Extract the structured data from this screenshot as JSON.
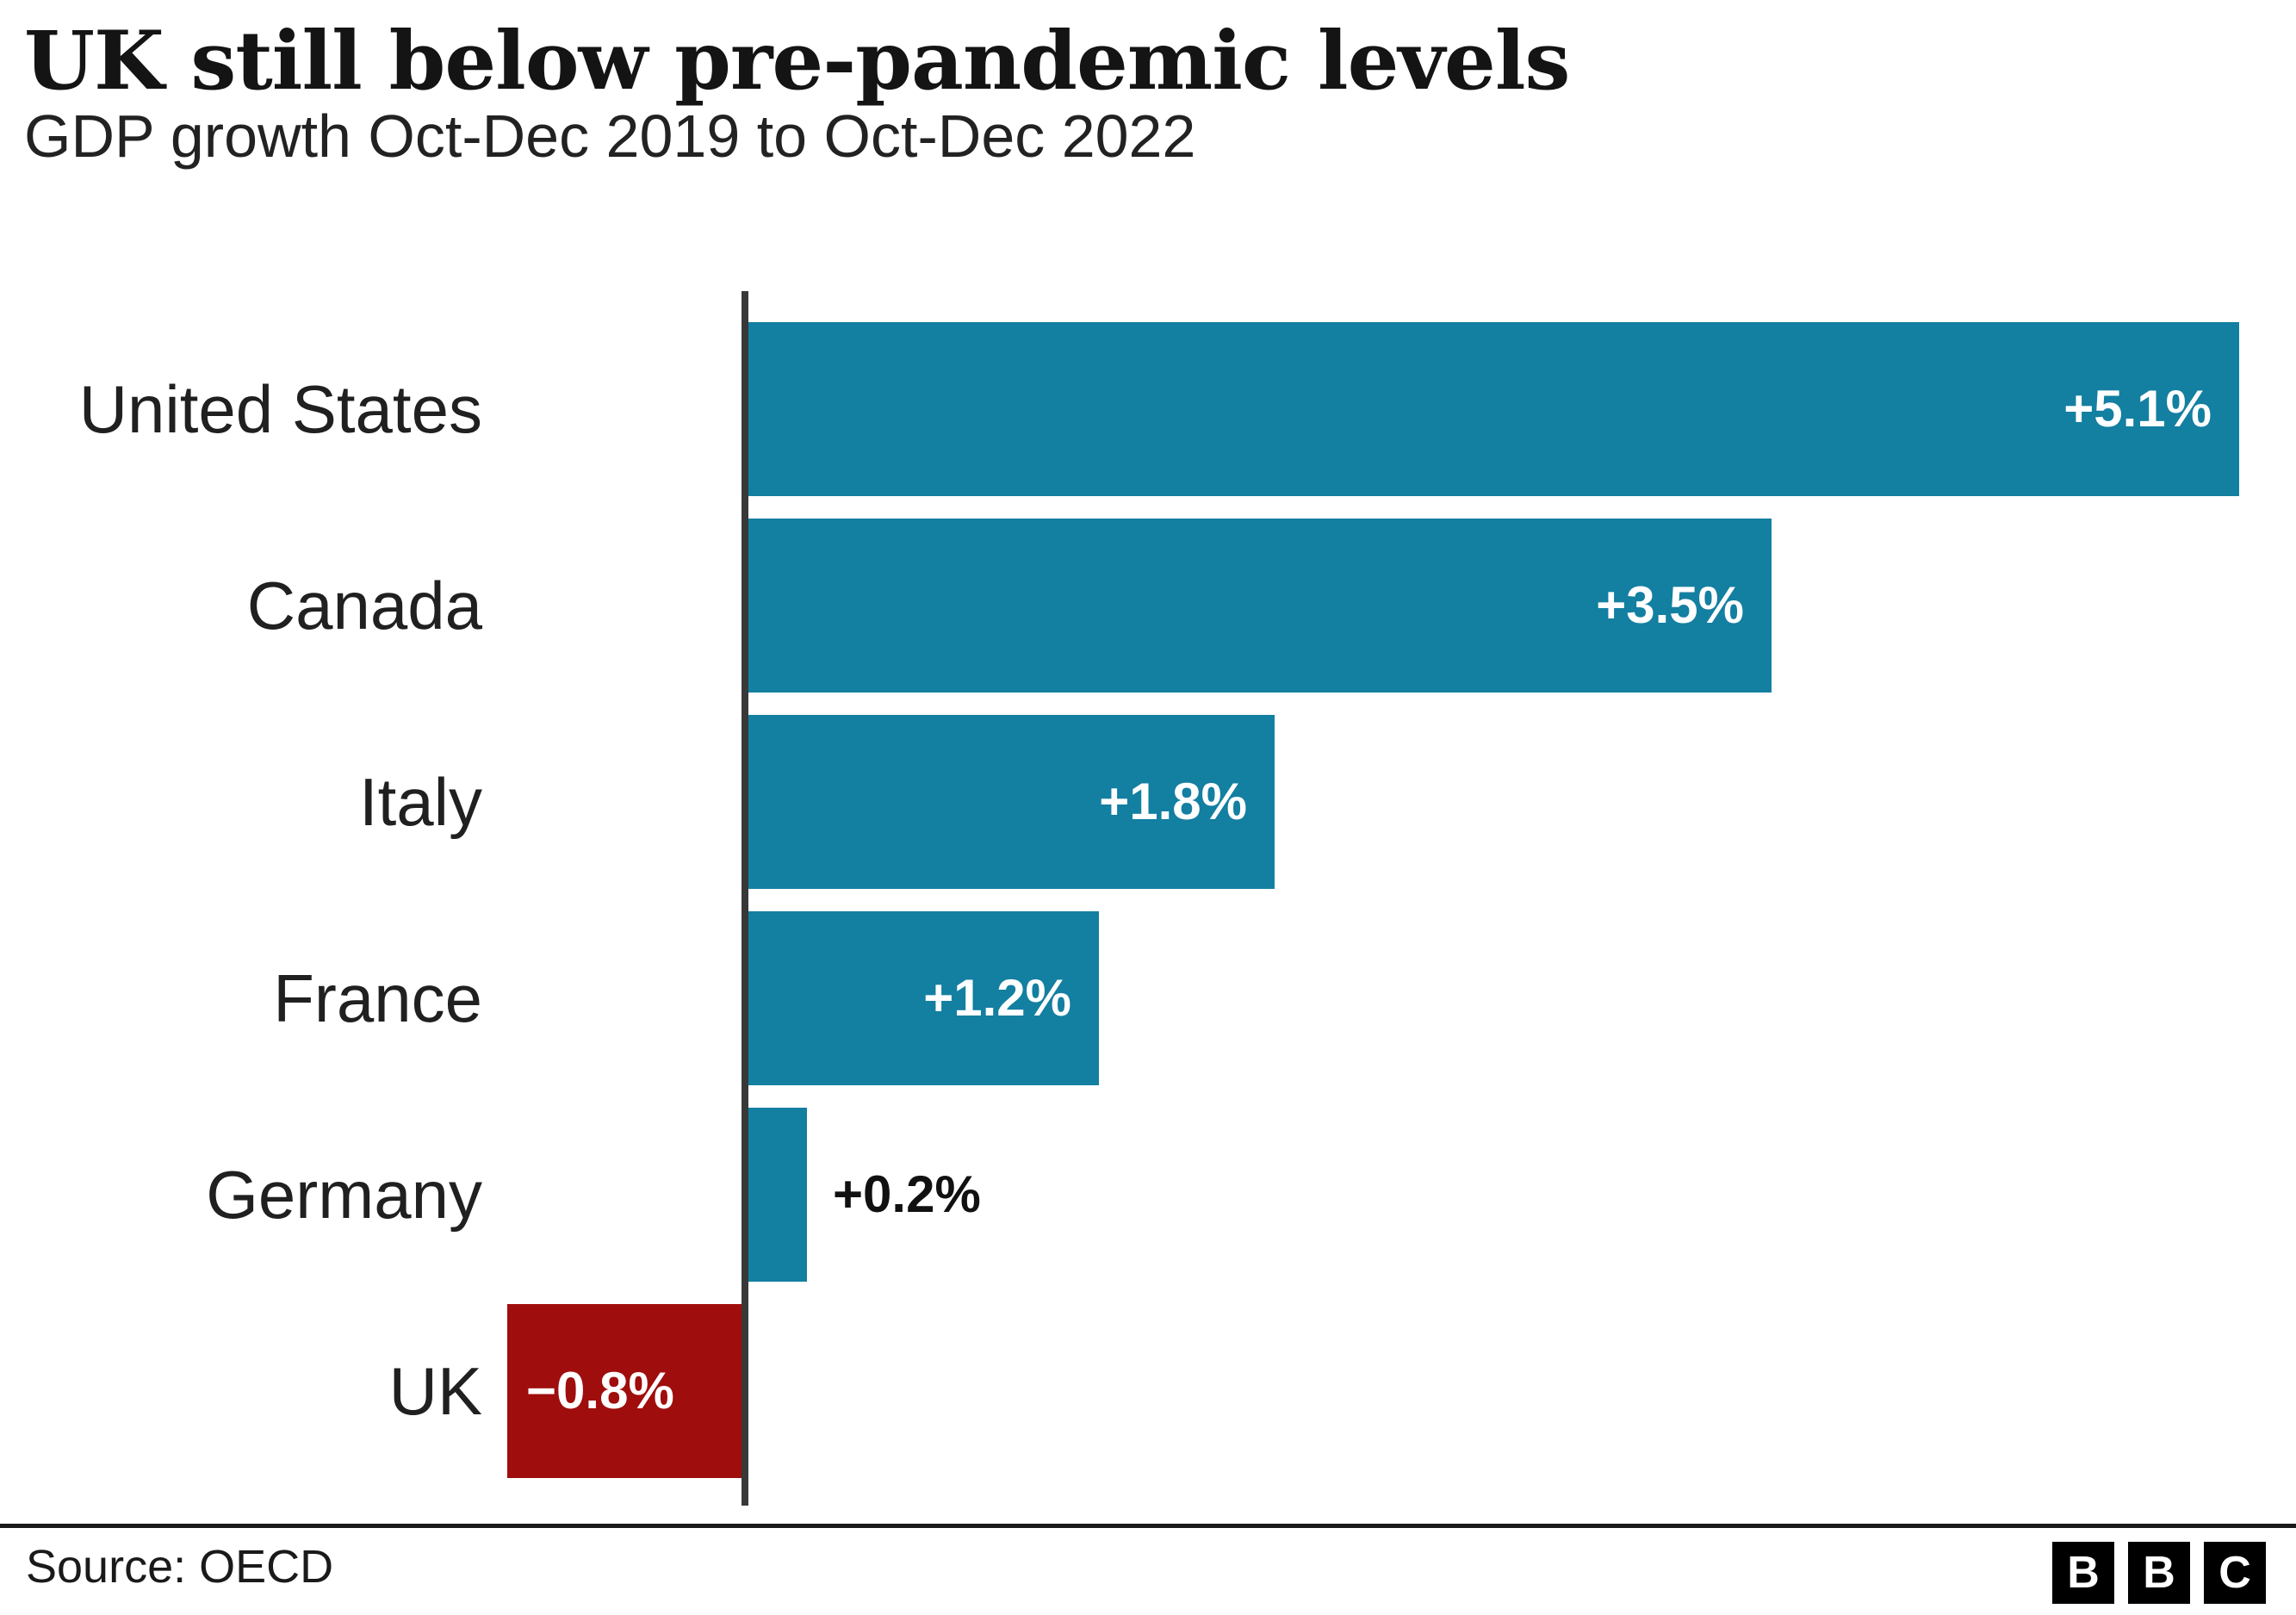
{
  "header": {
    "title": "UK still below pre-pandemic levels",
    "subtitle": "GDP growth Oct-Dec 2019 to Oct-Dec 2022"
  },
  "chart_data": {
    "type": "bar",
    "orientation": "horizontal",
    "title": "UK still below pre-pandemic levels",
    "subtitle": "GDP growth Oct-Dec 2019 to Oct-Dec 2022",
    "categories": [
      "United States",
      "Canada",
      "Italy",
      "France",
      "Germany",
      "UK"
    ],
    "values": [
      5.1,
      3.5,
      1.8,
      1.2,
      0.2,
      -0.8
    ],
    "value_labels": [
      "+5.1%",
      "+3.5%",
      "+1.8%",
      "+1.2%",
      "+0.2%",
      "−0.8%"
    ],
    "xlabel": "",
    "ylabel": "",
    "xlim": [
      -0.8,
      5.1
    ],
    "grid": false,
    "legend": "none",
    "unit": "%",
    "positive_color": "#137FA1",
    "negative_color": "#A00D0D"
  },
  "footer": {
    "source": "Source: OECD",
    "logo_letters": [
      "B",
      "B",
      "C"
    ]
  },
  "colors": {
    "axis": "#383838",
    "background": "#ffffff",
    "title_text": "#141414",
    "label_text": "#202020",
    "value_inside_text": "#ffffff",
    "value_outside_text": "#111111"
  }
}
